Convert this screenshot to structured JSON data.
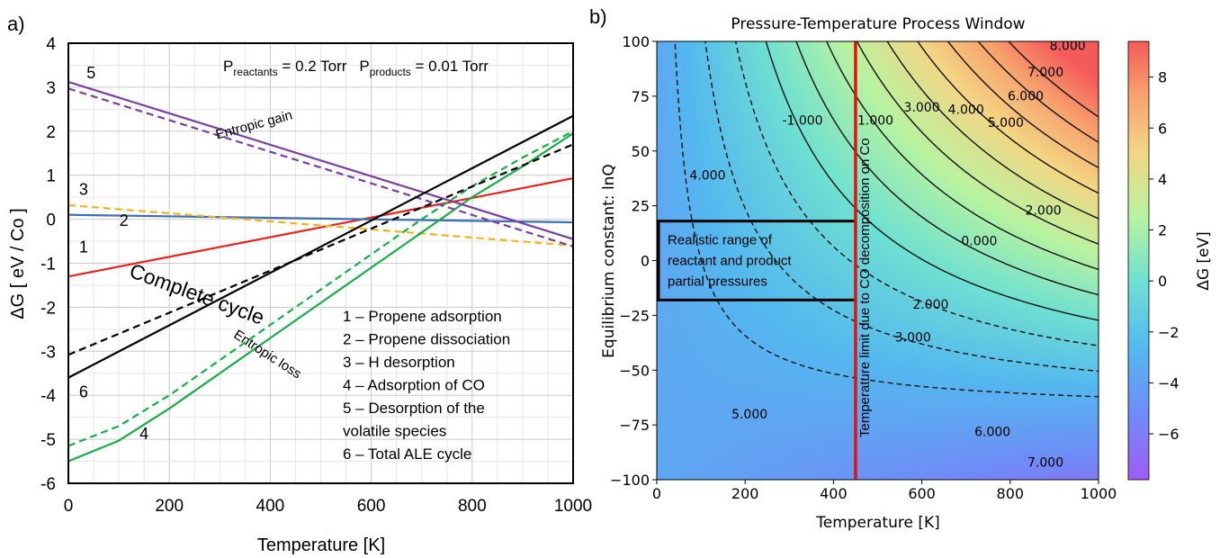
{
  "chart_data": [
    {
      "panel": "a)",
      "type": "line",
      "xlabel": "Temperature [K]",
      "ylabel": "ΔG [ eV / Co ]",
      "xlim": [
        0,
        1000
      ],
      "ylim": [
        -6,
        4
      ],
      "xticks": [
        "0",
        "200",
        "400",
        "600",
        "800",
        "1000"
      ],
      "yticks": [
        "-6",
        "-5",
        "-4",
        "-3",
        "-2",
        "-1",
        "0",
        "1",
        "2",
        "3",
        "4"
      ],
      "grid": true,
      "pressure_note": {
        "p1": "P",
        "p1_sub": "reactants",
        "p1_val": " = 0.2 Torr",
        "p2": "P",
        "p2_sub": "products",
        "p2_val": " = 0.01 Torr"
      },
      "series": [
        {
          "id": "1",
          "name": "1 – Propene adsorption",
          "color": "#e8231f",
          "style": "solid",
          "x": [
            0,
            1000
          ],
          "y": [
            -1.3,
            0.93
          ]
        },
        {
          "id": "2",
          "name": "2 – Propene dissociation",
          "color": "#3d6fb6",
          "style": "solid",
          "x": [
            0,
            1000
          ],
          "y": [
            0.1,
            -0.07
          ]
        },
        {
          "id": "3",
          "name": "3 – H desorption",
          "color": "#f5b21a",
          "style": "dashed",
          "x": [
            0,
            1000
          ],
          "y": [
            0.32,
            -0.6
          ]
        },
        {
          "id": "4",
          "name": "4 – Adsorption of CO",
          "color": "#1aac4a",
          "style": "solid",
          "x": [
            0,
            100,
            200,
            300,
            400,
            500,
            600,
            700,
            800,
            900,
            1000
          ],
          "y": [
            -5.5,
            -5.03,
            -4.3,
            -3.5,
            -2.7,
            -1.9,
            -1.1,
            -0.3,
            0.5,
            1.2,
            1.95
          ]
        },
        {
          "id": "4d",
          "name": "",
          "color": "#1aac4a",
          "style": "dashed",
          "x": [
            0,
            100,
            200,
            300,
            400,
            500,
            600,
            700,
            800,
            900,
            1000
          ],
          "y": [
            -5.15,
            -4.7,
            -4.0,
            -3.2,
            -2.4,
            -1.6,
            -0.8,
            0.0,
            0.75,
            1.4,
            2.0
          ]
        },
        {
          "id": "5",
          "name": "5 – Desorption of the volatile species",
          "name2": "volatile species",
          "color": "#7b3fa0",
          "style": "solid",
          "x": [
            0,
            1000
          ],
          "y": [
            3.12,
            -0.45
          ]
        },
        {
          "id": "5d",
          "name": "",
          "color": "#7b3fa0",
          "style": "dashed",
          "x": [
            0,
            1000
          ],
          "y": [
            2.97,
            -0.62
          ]
        },
        {
          "id": "6",
          "name": "6 – Total ALE cycle",
          "color": "#000000",
          "style": "solid",
          "x": [
            0,
            1000
          ],
          "y": [
            -3.6,
            2.35
          ]
        },
        {
          "id": "6d",
          "name": "",
          "color": "#000000",
          "style": "dashed",
          "x": [
            0,
            1000
          ],
          "y": [
            -3.08,
            1.7
          ]
        }
      ],
      "legend": [
        {
          "text": "1 – Propene adsorption",
          "color": "#e8231f"
        },
        {
          "text": "2 – Propene dissociation",
          "color": "#3d6fb6"
        },
        {
          "text": "3 – H desorption",
          "color": "#f5b21a"
        },
        {
          "text": "4 – Adsorption of CO",
          "color": "#1aac4a"
        },
        {
          "text": "5 – Desorption of the",
          "color": "#7b3fa0"
        },
        {
          "text": "volatile species",
          "color": "#7b3fa0"
        },
        {
          "text": "6 – Total ALE cycle",
          "color": "#000000"
        }
      ],
      "line_labels": [
        {
          "text": "5",
          "color": "#7b3fa0",
          "x": 45,
          "y": 3.2
        },
        {
          "text": "3",
          "color": "#f5b21a",
          "x": 30,
          "y": 0.55
        },
        {
          "text": "2",
          "color": "#3d6fb6",
          "x": 110,
          "y": -0.15
        },
        {
          "text": "1",
          "color": "#e8231f",
          "x": 30,
          "y": -0.75
        },
        {
          "text": "6",
          "color": "#000000",
          "x": 30,
          "y": -4.05
        },
        {
          "text": "4",
          "color": "#1aac4a",
          "x": 150,
          "y": -5.0
        }
      ],
      "annotations": [
        {
          "text": "Entropic gain",
          "x": 370,
          "y": 2.05,
          "angle": 15,
          "size": 15
        },
        {
          "text": "Complete cycle",
          "x": 250,
          "y": -1.85,
          "angle": -20,
          "size": 23
        },
        {
          "text": "Entropic loss",
          "x": 390,
          "y": -3.15,
          "angle": -33,
          "size": 15
        }
      ]
    },
    {
      "panel": "b)",
      "type": "heatmap",
      "title": "Pressure-Temperature Process Window",
      "xlabel": "Temperature [K]",
      "ylabel": "Equilibrium constant: lnQ",
      "xlim": [
        0,
        1000
      ],
      "ylim": [
        -100,
        100
      ],
      "xticks": [
        "0",
        "200",
        "400",
        "600",
        "800",
        "1000"
      ],
      "yticks": [
        "100",
        "75",
        "50",
        "25",
        "0",
        "−25",
        "−50",
        "−75",
        "−100"
      ],
      "colorbar": {
        "label": "ΔG [eV]",
        "min": -7.8,
        "max": 9.4,
        "ticks": [
          "8",
          "6",
          "4",
          "2",
          "0",
          "−2",
          "−4",
          "−6"
        ],
        "colormap": "rainbow"
      },
      "model": {
        "g0": -3.6,
        "slope_per_K": 0.00595,
        "lnQ_coef_eV_per_K": 8.617e-05
      },
      "contour_levels": [
        -7,
        -6,
        -5,
        -4,
        -3,
        -2,
        -1,
        0,
        1,
        2,
        3,
        4,
        5,
        6,
        7,
        8
      ],
      "contour_labels": [
        {
          "text": "8.000",
          "x": 930,
          "y": 96
        },
        {
          "text": "7.000",
          "x": 880,
          "y": 84
        },
        {
          "text": "6.000",
          "x": 835,
          "y": 73
        },
        {
          "text": "5.000",
          "x": 790,
          "y": 61
        },
        {
          "text": "4.000",
          "x": 700,
          "y": 67
        },
        {
          "text": "3.000",
          "x": 600,
          "y": 68
        },
        {
          "text": "1.000",
          "x": 495,
          "y": 62
        },
        {
          "text": "-1.000",
          "x": 330,
          "y": 62
        },
        {
          "text": "4.000",
          "x": 115,
          "y": 37
        },
        {
          "text": "2.000",
          "x": 875,
          "y": 21
        },
        {
          "text": "0.000",
          "x": 730,
          "y": 7
        },
        {
          "text": "2.000",
          "x": 620,
          "y": -22
        },
        {
          "text": "3.000",
          "x": 580,
          "y": -37
        },
        {
          "text": "5.000",
          "x": 210,
          "y": -72
        },
        {
          "text": "6.000",
          "x": 760,
          "y": -80
        },
        {
          "text": "7.000",
          "x": 880,
          "y": -94
        }
      ],
      "box_text": [
        "Realistic range of",
        "reactant and product",
        "partial pressures"
      ],
      "box": {
        "x": [
          0,
          450
        ],
        "y": [
          -18,
          18
        ]
      },
      "vline": {
        "x": 450,
        "color": "#e8100c",
        "label": "Temperature limit due to CO decomposition on Co"
      }
    }
  ]
}
